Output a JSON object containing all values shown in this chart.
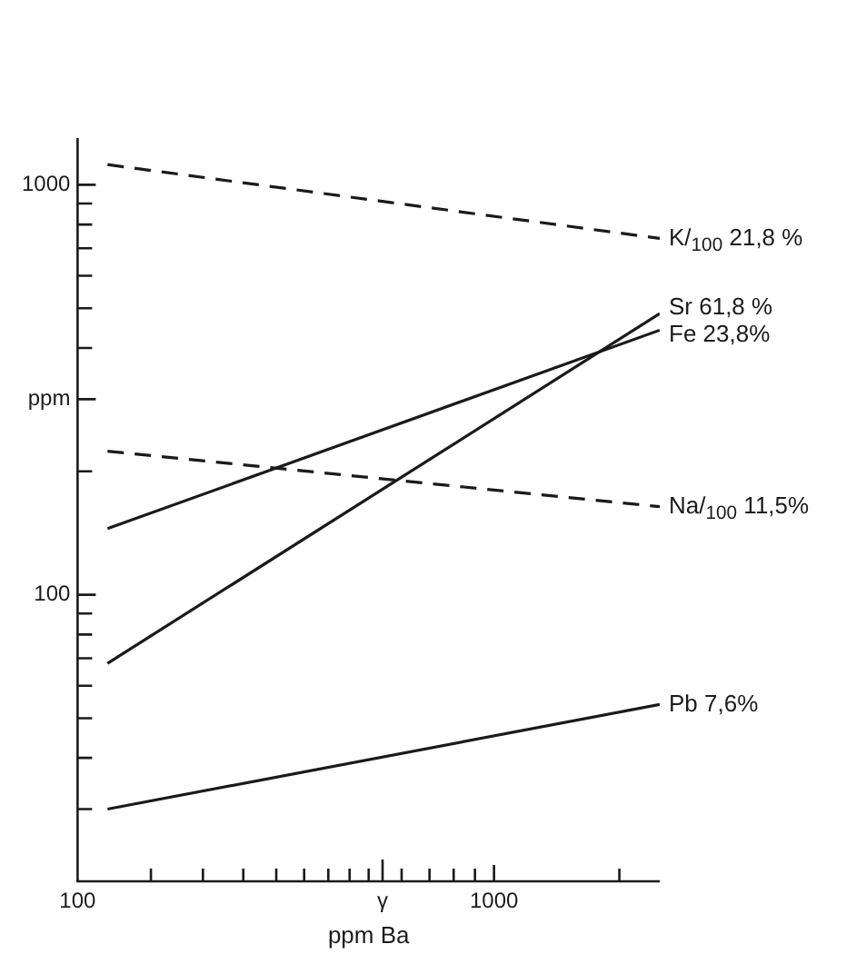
{
  "chart_data": {
    "type": "line",
    "xlabel": "ppm Ba",
    "log": "xy",
    "grid": false,
    "legend": false,
    "marker": "none",
    "xlim": [
      100,
      2500
    ],
    "ylim": [
      20,
      1300
    ],
    "xticks": [
      100,
      {
        "value": 150,
        "label": null
      },
      {
        "value": 200,
        "label": null
      },
      {
        "value": 250,
        "label": null
      },
      {
        "value": 300,
        "label": null
      },
      {
        "value": 350,
        "label": null
      },
      {
        "value": 400,
        "label": null
      },
      {
        "value": 450,
        "label": null
      },
      {
        "value": 500,
        "label": null
      },
      {
        "value": 540,
        "label": "γ"
      },
      {
        "value": 600,
        "label": null
      },
      {
        "value": 700,
        "label": null
      },
      {
        "value": 800,
        "label": null
      },
      {
        "value": 900,
        "label": null
      },
      1000,
      {
        "value": 2000,
        "label": null
      }
    ],
    "yticks": [
      {
        "value": 30,
        "label": null
      },
      {
        "value": 40,
        "label": null
      },
      {
        "value": 50,
        "label": null
      },
      {
        "value": 60,
        "label": null
      },
      {
        "value": 70,
        "label": null
      },
      {
        "value": 80,
        "label": null
      },
      {
        "value": 90,
        "label": null
      },
      100,
      {
        "value": 200,
        "label": null
      },
      {
        "value": 300,
        "label": "ppm"
      },
      {
        "value": 400,
        "label": null
      },
      {
        "value": 500,
        "label": null
      },
      {
        "value": 600,
        "label": null
      },
      {
        "value": 700,
        "label": null
      },
      {
        "value": 800,
        "label": null
      },
      {
        "value": 900,
        "label": null
      },
      1000
    ],
    "x": [
      118,
      2500
    ],
    "series": [
      {
        "name": "K/$_{100}$ 21,8 %",
        "color": "#1a1a1a",
        "line_style": "dashed",
        "values": [
          1120,
          740
        ]
      },
      {
        "name": "Sr 61,8 %",
        "color": "#1a1a1a",
        "line_style": "solid",
        "values": [
          68,
          485
        ]
      },
      {
        "name": "Fe 23,8%",
        "color": "#1a1a1a",
        "line_style": "solid",
        "values": [
          145,
          442
        ]
      },
      {
        "name": "Na/$_{100}$ 11,5%",
        "color": "#1a1a1a",
        "line_style": "dashed",
        "values": [
          224,
          164
        ]
      },
      {
        "name": "Pb 7,6%",
        "color": "#1a1a1a",
        "line_style": "solid",
        "values": [
          30,
          54
        ]
      }
    ]
  }
}
